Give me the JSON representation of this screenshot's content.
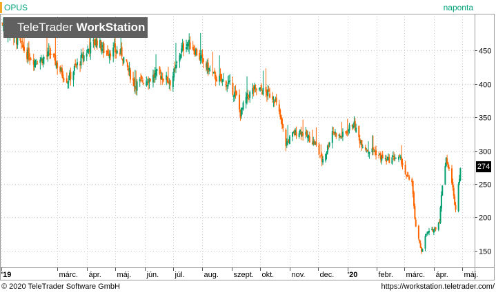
{
  "header": {
    "symbol": "OPUS",
    "interval": "naponta"
  },
  "watermark": {
    "brand_light": "TeleTrader",
    "brand_bold": "WorkStation"
  },
  "footer": {
    "copyright": "© 2020 TeleTrader Software GmbH",
    "url": "https://workstation.teletrader.com/"
  },
  "colors": {
    "up": "#009e6e",
    "down": "#ff6600",
    "accent": "#f5a623",
    "grid": "#c8c8c8",
    "axis": "#9a9a9a"
  },
  "chart_data": {
    "type": "candlestick",
    "ylim": [
      125,
      505
    ],
    "y_ticks": [
      150,
      200,
      250,
      300,
      350,
      400,
      450
    ],
    "x_ticks": [
      {
        "label": "'19",
        "date": "2019-01-01",
        "bold": true
      },
      {
        "label": "márc.",
        "date": "2019-03-01"
      },
      {
        "label": "ápr.",
        "date": "2019-04-01"
      },
      {
        "label": "máj.",
        "date": "2019-05-01"
      },
      {
        "label": "jún.",
        "date": "2019-06-01"
      },
      {
        "label": "júl.",
        "date": "2019-07-01"
      },
      {
        "label": "aug.",
        "date": "2019-08-01"
      },
      {
        "label": "szept.",
        "date": "2019-09-01"
      },
      {
        "label": "okt.",
        "date": "2019-10-01"
      },
      {
        "label": "nov.",
        "date": "2019-11-01"
      },
      {
        "label": "dec.",
        "date": "2019-12-01"
      },
      {
        "label": "'20",
        "date": "2020-01-01",
        "bold": true
      },
      {
        "label": "febr.",
        "date": "2020-02-01"
      },
      {
        "label": "márc.",
        "date": "2020-03-01"
      },
      {
        "label": "ápr.",
        "date": "2020-04-01"
      },
      {
        "label": "máj.",
        "date": "2020-05-01"
      }
    ],
    "last_value": "274",
    "close_series": [
      [
        "2019-01-02",
        490
      ],
      [
        "2019-01-10",
        478
      ],
      [
        "2019-01-18",
        465
      ],
      [
        "2019-01-28",
        445
      ],
      [
        "2019-02-05",
        435
      ],
      [
        "2019-02-14",
        438
      ],
      [
        "2019-02-22",
        445
      ],
      [
        "2019-03-04",
        420
      ],
      [
        "2019-03-12",
        405
      ],
      [
        "2019-03-20",
        425
      ],
      [
        "2019-03-28",
        440
      ],
      [
        "2019-04-04",
        455
      ],
      [
        "2019-04-12",
        465
      ],
      [
        "2019-04-20",
        448
      ],
      [
        "2019-04-30",
        450
      ],
      [
        "2019-05-08",
        445
      ],
      [
        "2019-05-15",
        420
      ],
      [
        "2019-05-22",
        398
      ],
      [
        "2019-05-30",
        405
      ],
      [
        "2019-06-07",
        408
      ],
      [
        "2019-06-14",
        415
      ],
      [
        "2019-06-21",
        410
      ],
      [
        "2019-06-28",
        403
      ],
      [
        "2019-07-03",
        420
      ],
      [
        "2019-07-08",
        445
      ],
      [
        "2019-07-15",
        462
      ],
      [
        "2019-07-22",
        455
      ],
      [
        "2019-07-29",
        440
      ],
      [
        "2019-08-06",
        425
      ],
      [
        "2019-08-14",
        410
      ],
      [
        "2019-08-22",
        405
      ],
      [
        "2019-08-30",
        398
      ],
      [
        "2019-09-06",
        380
      ],
      [
        "2019-09-10",
        355
      ],
      [
        "2019-09-16",
        378
      ],
      [
        "2019-09-24",
        392
      ],
      [
        "2019-10-02",
        390
      ],
      [
        "2019-10-10",
        385
      ],
      [
        "2019-10-16",
        378
      ],
      [
        "2019-10-22",
        350
      ],
      [
        "2019-10-28",
        310
      ],
      [
        "2019-11-05",
        325
      ],
      [
        "2019-11-12",
        330
      ],
      [
        "2019-11-20",
        320
      ],
      [
        "2019-11-28",
        310
      ],
      [
        "2019-12-05",
        285
      ],
      [
        "2019-12-10",
        300
      ],
      [
        "2019-12-16",
        330
      ],
      [
        "2019-12-24",
        320
      ],
      [
        "2019-12-31",
        328
      ],
      [
        "2020-01-07",
        342
      ],
      [
        "2020-01-14",
        315
      ],
      [
        "2020-01-22",
        300
      ],
      [
        "2020-01-29",
        300
      ],
      [
        "2020-02-05",
        290
      ],
      [
        "2020-02-12",
        285
      ],
      [
        "2020-02-20",
        290
      ],
      [
        "2020-02-27",
        285
      ],
      [
        "2020-03-03",
        260
      ],
      [
        "2020-03-09",
        255
      ],
      [
        "2020-03-12",
        195
      ],
      [
        "2020-03-16",
        165
      ],
      [
        "2020-03-19",
        150
      ],
      [
        "2020-03-24",
        175
      ],
      [
        "2020-03-30",
        180
      ],
      [
        "2020-04-03",
        185
      ],
      [
        "2020-04-07",
        195
      ],
      [
        "2020-04-10",
        250
      ],
      [
        "2020-04-14",
        290
      ],
      [
        "2020-04-16",
        275
      ],
      [
        "2020-04-20",
        255
      ],
      [
        "2020-04-22",
        230
      ],
      [
        "2020-04-24",
        215
      ],
      [
        "2020-04-27",
        250
      ],
      [
        "2020-04-29",
        274
      ]
    ]
  }
}
